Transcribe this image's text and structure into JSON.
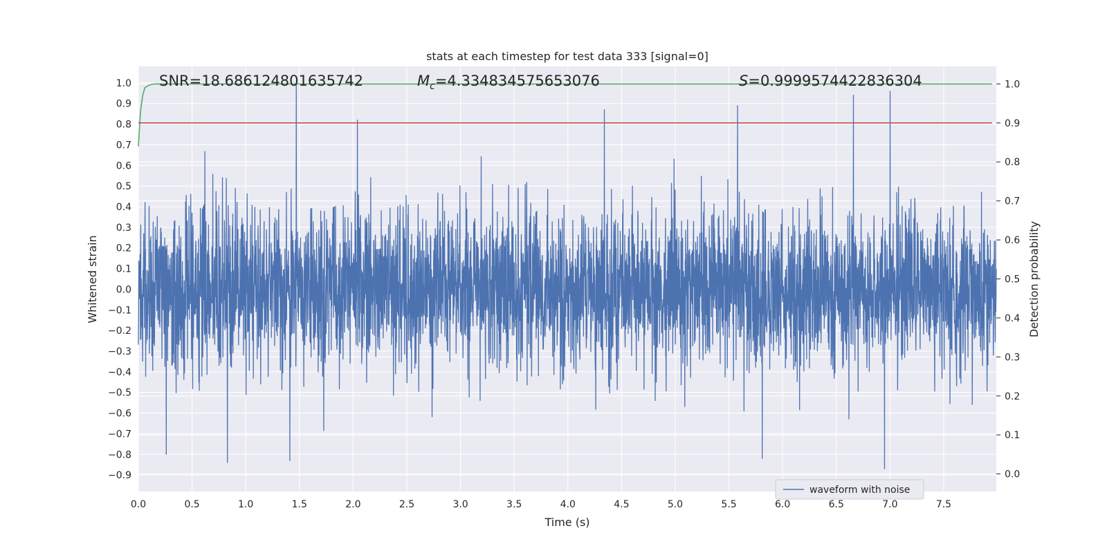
{
  "chart_data": {
    "type": "line",
    "title": "stats at each timestep for test data 333 [signal=0]",
    "xlabel": "Time (s)",
    "ylabel": "Whitened strain",
    "ylabel_right": "Detection probability",
    "xlim": [
      0.0,
      7.99
    ],
    "ylim": [
      -0.98,
      1.08
    ],
    "ylim_right": [
      -0.045,
      1.045
    ],
    "x_ticks": [
      "0.0",
      "0.5",
      "1.0",
      "1.5",
      "2.0",
      "2.5",
      "3.0",
      "3.5",
      "4.0",
      "4.5",
      "5.0",
      "5.5",
      "6.0",
      "6.5",
      "7.0",
      "7.5"
    ],
    "y_ticks": [
      "1.0",
      "0.9",
      "0.8",
      "0.7",
      "0.6",
      "0.5",
      "0.4",
      "0.3",
      "0.2",
      "0.1",
      "0.0",
      "−0.1",
      "−0.2",
      "−0.3",
      "−0.4",
      "−0.5",
      "−0.6",
      "−0.7",
      "−0.8",
      "−0.9"
    ],
    "y_ticks_right": [
      "1.0",
      "0.9",
      "0.8",
      "0.7",
      "0.6",
      "0.5",
      "0.4",
      "0.3",
      "0.2",
      "0.1",
      "0.0"
    ],
    "annotations": {
      "snr": "SNR=18.686124801635742",
      "mc_symbol": "M",
      "mc_sub": "c",
      "mc_value": "=4.334834575653076",
      "s_symbol": "S",
      "s_value": "=0.9999574422836304"
    },
    "grid": true,
    "legend_position": "lower-right",
    "series": [
      {
        "name": "waveform with noise",
        "axis": "left",
        "color": "#4c72b0",
        "kind": "noise",
        "mean": 0.0,
        "max_abs_peak": 1.0,
        "peaks": [
          {
            "x": 1.47,
            "y": 1.0
          },
          {
            "x": 2.04,
            "y": 0.82
          },
          {
            "x": 4.34,
            "y": 0.87
          },
          {
            "x": 5.58,
            "y": 0.89
          },
          {
            "x": 6.66,
            "y": 0.94
          },
          {
            "x": 7.0,
            "y": 0.96
          },
          {
            "x": 6.95,
            "y": -0.87
          },
          {
            "x": 0.83,
            "y": -0.84
          },
          {
            "x": 1.41,
            "y": -0.83
          },
          {
            "x": 5.81,
            "y": -0.82
          },
          {
            "x": 0.26,
            "y": -0.8
          }
        ]
      },
      {
        "name": "detection probability",
        "axis": "right",
        "color": "#55a868",
        "x": [
          0.0,
          0.02,
          0.04,
          0.06,
          0.1,
          0.15,
          7.95
        ],
        "y": [
          0.84,
          0.93,
          0.97,
          0.99,
          0.997,
          1.0,
          1.0
        ]
      },
      {
        "name": "threshold",
        "axis": "right",
        "color": "#c44e52",
        "x": [
          0.0,
          7.95
        ],
        "y": [
          0.9,
          0.9
        ]
      }
    ]
  }
}
